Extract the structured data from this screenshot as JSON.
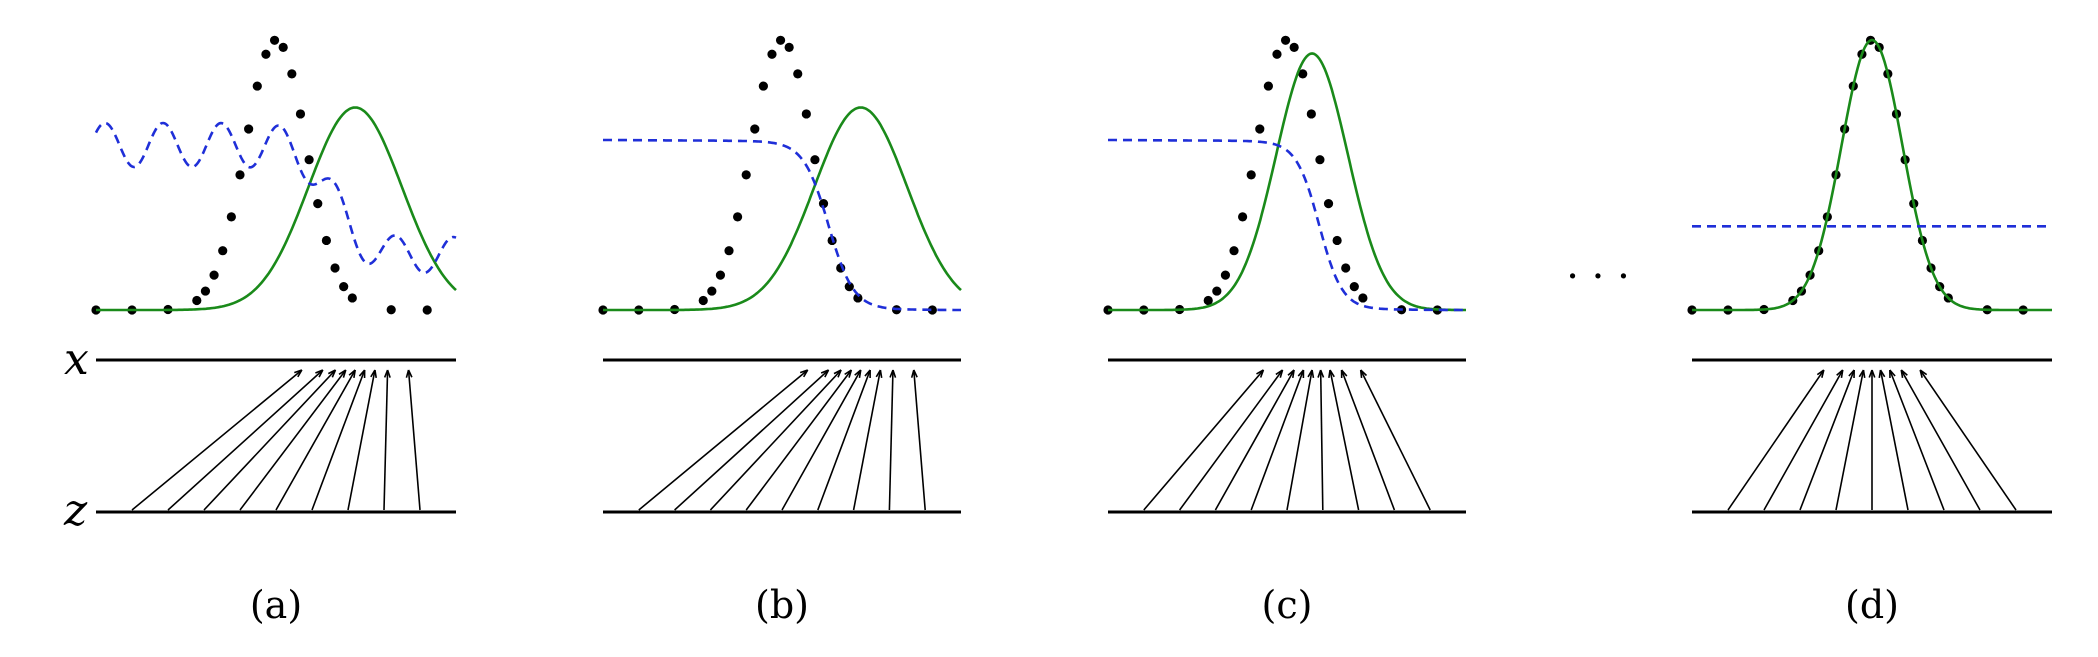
{
  "axis_labels": {
    "x": "x",
    "z": "z"
  },
  "ellipsis": "· · ·",
  "colors": {
    "data": "#000000",
    "generator": "#1a8a1a",
    "discriminator": "#1f2fd8",
    "axes": "#000000"
  },
  "panels": [
    {
      "caption": "(a)",
      "stage": "initial",
      "generator_center": 0.72,
      "generator_width": 0.13,
      "generator_height": 0.75,
      "discriminator": "oscillating"
    },
    {
      "caption": "(b)",
      "stage": "discriminator-trained",
      "generator_center": 0.72,
      "generator_width": 0.13,
      "generator_height": 0.75,
      "discriminator": "sigmoid"
    },
    {
      "caption": "(c)",
      "stage": "generator-updated",
      "generator_center": 0.57,
      "generator_width": 0.1,
      "generator_height": 0.95,
      "discriminator": "sigmoid"
    },
    {
      "caption": "(d)",
      "stage": "converged",
      "generator_center": 0.5,
      "generator_width": 0.085,
      "generator_height": 1.0,
      "discriminator": "flat",
      "discriminator_level": 0.5
    }
  ]
}
